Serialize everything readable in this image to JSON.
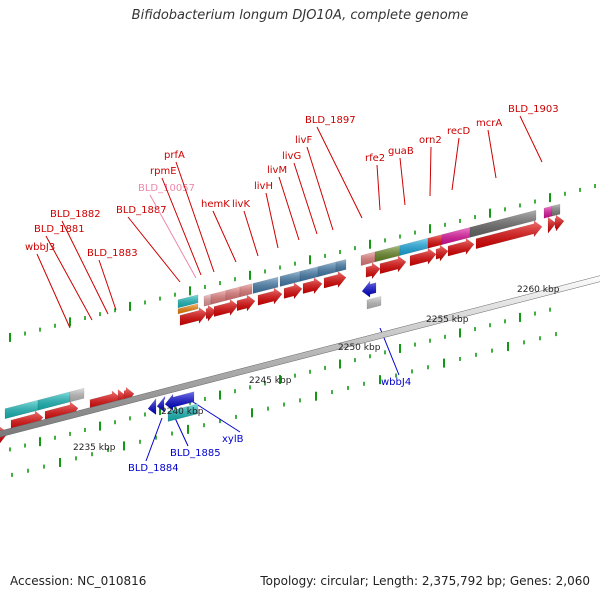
{
  "title": "Bifidobacterium longum DJO10A, complete genome",
  "footer": {
    "accession": "Accession: NC_010816",
    "summary": "Topology: circular; Length: 2,375,792 bp; Genes: 2,060"
  },
  "scale_labels": [
    "2235 kbp",
    "2240 kbp",
    "2245 kbp",
    "2250 kbp",
    "2255 kbp",
    "2260 kbp"
  ],
  "colors": {
    "forward_label": "#cc0000",
    "reverse_label": "#0000cc",
    "pseudo_label": "#ee88aa",
    "cds_red": "#ee0000",
    "cds_blue": "#0011cc",
    "tick_green": "#119911"
  },
  "forward_genes": [
    {
      "name": "wbbJ3"
    },
    {
      "name": "BLD_1881"
    },
    {
      "name": "BLD_1882"
    },
    {
      "name": "BLD_1883"
    },
    {
      "name": "BLD_1887"
    },
    {
      "name": "BLD_10057"
    },
    {
      "name": "rpmE"
    },
    {
      "name": "prfA"
    },
    {
      "name": "hemK"
    },
    {
      "name": "livK"
    },
    {
      "name": "livH"
    },
    {
      "name": "livM"
    },
    {
      "name": "livG"
    },
    {
      "name": "livF"
    },
    {
      "name": "BLD_1897"
    },
    {
      "name": "rfe2"
    },
    {
      "name": "guaB"
    },
    {
      "name": "orn2"
    },
    {
      "name": "recD"
    },
    {
      "name": "mcrA"
    },
    {
      "name": "BLD_1903"
    }
  ],
  "reverse_genes": [
    {
      "name": "BLD_1884"
    },
    {
      "name": "BLD_1885"
    },
    {
      "name": "xylB"
    },
    {
      "name": "wbbJ4"
    }
  ]
}
